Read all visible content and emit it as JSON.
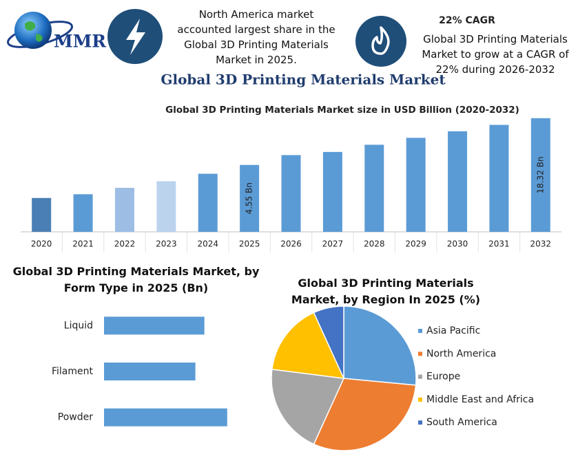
{
  "header": {
    "logo_text": "MMR",
    "left_text": "North America market accounted largest share in the Global 3D Printing Materials Market in 2025.",
    "cagr_title": "22% CAGR",
    "cagr_text": "Global 3D Printing Materials Market to grow at a CAGR of 22% during 2026-2032",
    "main_title": "Global 3D Printing Materials Market"
  },
  "chart_data": [
    {
      "type": "bar",
      "title": "Global 3D Printing Materials Market size in USD Billion (2020-2032)",
      "categories": [
        "2020",
        "2021",
        "2022",
        "2023",
        "2024",
        "2025",
        "2026",
        "2027",
        "2028",
        "2029",
        "2030",
        "2031",
        "2032"
      ],
      "values": [
        1.7,
        1.9,
        2.3,
        2.8,
        3.5,
        4.55,
        6.1,
        6.7,
        8.3,
        10.2,
        12.4,
        15.0,
        18.32
      ],
      "value_labels": [
        null,
        null,
        null,
        null,
        null,
        "4.55 Bn",
        null,
        null,
        null,
        null,
        null,
        null,
        "18.32 Bn"
      ],
      "colors": [
        "#4a7fb5",
        "#5b9bd5",
        "#9dbde4",
        "#bcd3ee",
        "#5b9bd5",
        "#5b9bd5",
        "#5b9bd5",
        "#5b9bd5",
        "#5b9bd5",
        "#5b9bd5",
        "#5b9bd5",
        "#5b9bd5",
        "#5b9bd5"
      ],
      "ylim": [
        0.62,
        19
      ],
      "log_scale": true
    },
    {
      "type": "hbar",
      "title": "Global 3D Printing Materials Market, by Form Type in 2025 (Bn)",
      "categories": [
        "Liquid",
        "Filament",
        "Powder"
      ],
      "values": [
        1.45,
        1.32,
        1.78
      ],
      "color": "#5b9bd5",
      "xlim": [
        0,
        2.2
      ]
    },
    {
      "type": "pie",
      "title": "Global 3D Printing Materials Market, by Region In 2025 (%)",
      "categories": [
        "Asia Pacific",
        "North America",
        "Europe",
        "Middle East and Africa",
        "South America"
      ],
      "values": [
        26.5,
        30.3,
        20.2,
        16.2,
        6.8
      ],
      "colors": [
        "#5b9bd5",
        "#ed7d31",
        "#a5a5a5",
        "#ffc000",
        "#4472c4"
      ],
      "legend": "right"
    }
  ]
}
